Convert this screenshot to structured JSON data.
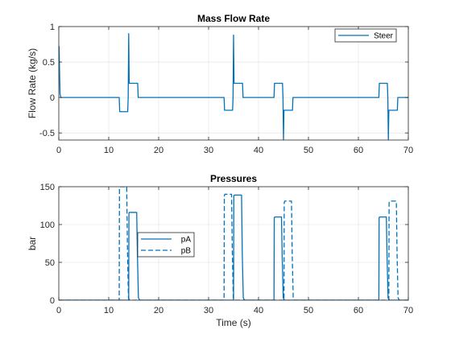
{
  "colors": {
    "series": "#0072BD",
    "axis": "#262626",
    "grid": "#DFDFDF",
    "background": "#FFFFFF"
  },
  "chart_data": [
    {
      "type": "line",
      "title": "Mass Flow Rate",
      "xlabel": "",
      "ylabel": "Flow Rate (kg/s)",
      "xlim": [
        0,
        70
      ],
      "ylim": [
        -0.6,
        1
      ],
      "grid": true,
      "legend_position": "top-right",
      "x_ticks": [
        {
          "value": 0,
          "label": "0"
        },
        {
          "value": 10,
          "label": "10"
        },
        {
          "value": 20,
          "label": "20"
        },
        {
          "value": 30,
          "label": "30"
        },
        {
          "value": 40,
          "label": "40"
        },
        {
          "value": 50,
          "label": "50"
        },
        {
          "value": 60,
          "label": "60"
        },
        {
          "value": 70,
          "label": "70"
        }
      ],
      "y_ticks": [
        {
          "value": -0.5,
          "label": "-0.5"
        },
        {
          "value": 0,
          "label": "0"
        },
        {
          "value": 0.5,
          "label": "0.5"
        },
        {
          "value": 1,
          "label": "1"
        }
      ],
      "series": [
        {
          "name": "Steer",
          "dash": "solid",
          "x": [
            0,
            0.05,
            0.25,
            0.4,
            12.1,
            12.2,
            13.8,
            13.9,
            14.0,
            14.1,
            14.3,
            15.8,
            15.9,
            33.1,
            33.2,
            34.8,
            34.9,
            35.0,
            35.1,
            35.3,
            36.8,
            36.9,
            43.1,
            43.2,
            44.8,
            44.9,
            45.0,
            45.1,
            45.3,
            46.8,
            46.9,
            64.1,
            64.2,
            65.8,
            65.9,
            66.0,
            66.1,
            66.3,
            67.8,
            67.9,
            70
          ],
          "y": [
            0.72,
            0.72,
            0.05,
            0,
            0,
            -0.2,
            -0.2,
            0.0,
            0.9,
            0.2,
            0.2,
            0.2,
            0,
            0,
            -0.18,
            -0.18,
            0.0,
            0.88,
            0.2,
            0.2,
            0.2,
            0,
            0,
            0.2,
            0.2,
            0.0,
            -0.6,
            -0.18,
            -0.18,
            -0.18,
            0,
            0,
            0.2,
            0.2,
            0.0,
            -0.6,
            -0.18,
            -0.18,
            -0.18,
            0,
            0
          ]
        }
      ]
    },
    {
      "type": "line",
      "title": "Pressures",
      "xlabel": "Time (s)",
      "ylabel": "bar",
      "xlim": [
        0,
        70
      ],
      "ylim": [
        0,
        150
      ],
      "grid": true,
      "legend_position": "middle-left",
      "x_ticks": [
        {
          "value": 0,
          "label": "0"
        },
        {
          "value": 10,
          "label": "10"
        },
        {
          "value": 20,
          "label": "20"
        },
        {
          "value": 30,
          "label": "30"
        },
        {
          "value": 40,
          "label": "40"
        },
        {
          "value": 50,
          "label": "50"
        },
        {
          "value": 60,
          "label": "60"
        },
        {
          "value": 70,
          "label": "70"
        }
      ],
      "y_ticks": [
        {
          "value": 0,
          "label": "0"
        },
        {
          "value": 50,
          "label": "50"
        },
        {
          "value": 100,
          "label": "100"
        },
        {
          "value": 150,
          "label": "150"
        }
      ],
      "series": [
        {
          "name": "pA",
          "dash": "solid",
          "x": [
            0,
            14.0,
            14.05,
            14.15,
            15.6,
            15.75,
            15.95,
            16.2,
            35.0,
            35.05,
            35.15,
            36.6,
            36.75,
            36.95,
            37.2,
            43.1,
            43.15,
            43.25,
            44.6,
            44.75,
            44.95,
            45.2,
            64.1,
            64.15,
            64.25,
            65.6,
            65.75,
            65.95,
            66.2,
            70
          ],
          "y": [
            0,
            0,
            115,
            116,
            116,
            60,
            3,
            0,
            0,
            138,
            139,
            139,
            60,
            3,
            0,
            0,
            109,
            110,
            110,
            55,
            3,
            0,
            0,
            109,
            110,
            110,
            55,
            3,
            0,
            0
          ]
        },
        {
          "name": "pB",
          "dash": "dashed",
          "x": [
            0,
            12.1,
            12.15,
            12.25,
            13.6,
            13.75,
            13.95,
            14.2,
            33.1,
            33.15,
            33.25,
            34.6,
            34.75,
            34.95,
            35.2,
            45.1,
            45.15,
            45.25,
            46.6,
            46.75,
            46.95,
            47.2,
            66.1,
            66.15,
            66.25,
            67.6,
            67.75,
            67.95,
            68.2,
            70
          ],
          "y": [
            0,
            0,
            148,
            150,
            150,
            70,
            3,
            0,
            0,
            138,
            140,
            140,
            65,
            3,
            0,
            0,
            129,
            131,
            131,
            60,
            3,
            0,
            0,
            129,
            131,
            131,
            60,
            3,
            0,
            0
          ]
        }
      ]
    }
  ]
}
